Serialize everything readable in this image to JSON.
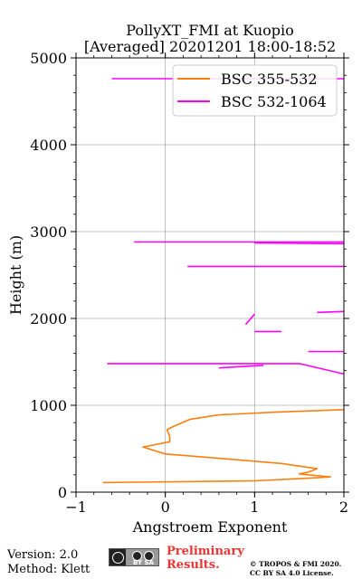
{
  "chart_data": {
    "type": "line",
    "title": "PollyXT_FMI at Kuopio",
    "subtitle": "[Averaged] 20201201 18:00-18:52",
    "xlabel": "Angstroem Exponent",
    "ylabel": "Height (m)",
    "xlim": [
      -1,
      2
    ],
    "ylim": [
      0,
      5000
    ],
    "xticks": [
      -1,
      0,
      1,
      2
    ],
    "xtick_labels": [
      "−1",
      "0",
      "1",
      "2"
    ],
    "yticks": [
      0,
      1000,
      2000,
      3000,
      4000,
      5000
    ],
    "ytick_labels": [
      "0",
      "1000",
      "2000",
      "3000",
      "4000",
      "5000"
    ],
    "grid": true,
    "legend_position": "top-right",
    "series": [
      {
        "name": "BSC 355-532",
        "color": "#ff7f0e",
        "points": [
          [
            -0.7,
            110
          ],
          [
            1.0,
            130
          ],
          [
            1.6,
            160
          ],
          [
            1.85,
            175
          ],
          [
            1.5,
            210
          ],
          [
            1.6,
            230
          ],
          [
            1.7,
            270
          ],
          [
            1.3,
            330
          ],
          [
            0.6,
            390
          ],
          [
            0.0,
            440
          ],
          [
            -0.25,
            520
          ],
          [
            0.05,
            580
          ],
          [
            0.05,
            640
          ],
          [
            0.02,
            720
          ],
          [
            0.1,
            760
          ],
          [
            0.28,
            840
          ],
          [
            0.6,
            890
          ],
          [
            1.2,
            920
          ],
          [
            2.0,
            950
          ]
        ]
      },
      {
        "name": "BSC 532-1064",
        "color": "#ff00ff",
        "points": [
          [
            -0.65,
            1480
          ],
          [
            1.5,
            1480
          ],
          [
            2.0,
            1360
          ],
          [
            1.6,
            1620
          ],
          [
            2.0,
            1620
          ],
          [
            0.6,
            1430
          ],
          [
            1.1,
            1460
          ],
          [
            1.0,
            1850
          ],
          [
            1.3,
            1850
          ],
          [
            0.9,
            1930
          ],
          [
            1.0,
            2050
          ],
          [
            1.7,
            2070
          ],
          [
            2.0,
            2080
          ],
          [
            0.25,
            2600
          ],
          [
            2.0,
            2600
          ],
          [
            -0.35,
            2880
          ],
          [
            2.0,
            2880
          ],
          [
            1.0,
            2870
          ],
          [
            2.0,
            2860
          ],
          [
            -0.6,
            4760
          ],
          [
            2.0,
            4760
          ]
        ]
      }
    ]
  },
  "footer": {
    "version": "Version: 2.0",
    "method": "Method: Klett",
    "preliminary_line1": "Preliminary",
    "preliminary_line2": "Results.",
    "copyright_line1": "© TROPOS & FMI 2020.",
    "copyright_line2": "CC BY SA 4.0 License.",
    "license_badge_text": "BY SA"
  }
}
